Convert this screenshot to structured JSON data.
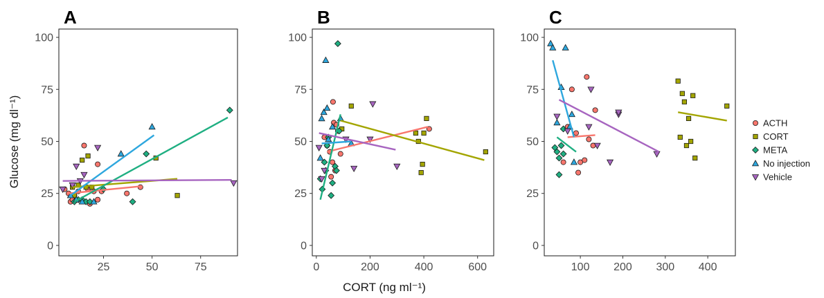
{
  "figure": {
    "ylabel": "Glucose (mg dl⁻¹)",
    "xlabel": "CORT (ng ml⁻¹)"
  },
  "legend": {
    "position": "right",
    "items": [
      {
        "name": "ACTH",
        "color": "#F8766D",
        "shape": "circle"
      },
      {
        "name": "CORT",
        "color": "#A3A500",
        "shape": "square"
      },
      {
        "name": "META",
        "color": "#1FAF82",
        "shape": "diamond"
      },
      {
        "name": "No injection",
        "color": "#2EA7DE",
        "shape": "triangle-up"
      },
      {
        "name": "Vehicle",
        "color": "#A765C0",
        "shape": "triangle-down"
      }
    ]
  },
  "chart_data": [
    {
      "type": "scatter",
      "title": "A",
      "xlim": [
        2,
        94
      ],
      "ylim": [
        -5,
        104
      ],
      "xticks": [
        25,
        50,
        75
      ],
      "yticks": [
        0,
        25,
        50,
        75,
        100
      ],
      "grid": false,
      "series": [
        {
          "name": "ACTH",
          "points": [
            [
              5,
              27
            ],
            [
              7,
              25
            ],
            [
              8,
              21
            ],
            [
              9,
              22
            ],
            [
              10,
              24
            ],
            [
              12,
              26
            ],
            [
              15,
              48
            ],
            [
              17,
              27
            ],
            [
              18,
              20
            ],
            [
              20,
              26
            ],
            [
              22,
              39
            ],
            [
              22,
              22
            ],
            [
              24,
              26
            ],
            [
              37,
              25
            ],
            [
              44,
              28
            ]
          ],
          "fit": [
            [
              7,
              25
            ],
            [
              45,
              28.5
            ]
          ]
        },
        {
          "name": "CORT",
          "points": [
            [
              9,
              28
            ],
            [
              10,
              24
            ],
            [
              12,
              29
            ],
            [
              14,
              41
            ],
            [
              16,
              28
            ],
            [
              17,
              43
            ],
            [
              19,
              28
            ],
            [
              52,
              42
            ],
            [
              63,
              24
            ]
          ],
          "fit": [
            [
              9,
              28
            ],
            [
              63,
              32
            ]
          ]
        },
        {
          "name": "META",
          "points": [
            [
              10,
              21
            ],
            [
              12,
              22
            ],
            [
              14,
              22
            ],
            [
              16,
              21
            ],
            [
              18,
              21
            ],
            [
              25,
              27
            ],
            [
              40,
              21
            ],
            [
              47,
              44
            ],
            [
              90,
              65
            ]
          ],
          "fit": [
            [
              10,
              21
            ],
            [
              89,
              61.5
            ]
          ]
        },
        {
          "name": "No injection",
          "points": [
            [
              8,
              24
            ],
            [
              11,
              22
            ],
            [
              14,
              21
            ],
            [
              20,
              21
            ],
            [
              34,
              44
            ],
            [
              50,
              57
            ]
          ],
          "fit": [
            [
              8,
              24
            ],
            [
              51,
              53
            ]
          ]
        },
        {
          "name": "Vehicle",
          "points": [
            [
              4,
              27
            ],
            [
              9,
              29
            ],
            [
              11,
              38
            ],
            [
              13,
              31
            ],
            [
              15,
              34
            ],
            [
              22,
              47
            ],
            [
              92,
              30
            ]
          ],
          "fit": [
            [
              4,
              31
            ],
            [
              91,
              31.5
            ]
          ]
        }
      ]
    },
    {
      "type": "scatter",
      "title": "B",
      "xlim": [
        -15,
        660
      ],
      "ylim": [
        -5,
        104
      ],
      "xticks": [
        0,
        200,
        400,
        600
      ],
      "yticks": [
        0,
        25,
        50,
        75,
        100
      ],
      "grid": false,
      "series": [
        {
          "name": "ACTH",
          "points": [
            [
              30,
              52
            ],
            [
              40,
              48
            ],
            [
              50,
              45
            ],
            [
              55,
              33
            ],
            [
              60,
              40
            ],
            [
              62,
              69
            ],
            [
              65,
              59
            ],
            [
              70,
              36
            ],
            [
              75,
              58
            ],
            [
              80,
              55
            ],
            [
              90,
              44
            ],
            [
              420,
              56
            ]
          ],
          "fit": [
            [
              40,
              45
            ],
            [
              415,
              57
            ]
          ]
        },
        {
          "name": "CORT",
          "points": [
            [
              95,
              56
            ],
            [
              130,
              67
            ],
            [
              370,
              54
            ],
            [
              380,
              50
            ],
            [
              390,
              35
            ],
            [
              395,
              39
            ],
            [
              400,
              54
            ],
            [
              410,
              61
            ],
            [
              630,
              45
            ]
          ],
          "fit": [
            [
              90,
              60
            ],
            [
              625,
              41
            ]
          ]
        },
        {
          "name": "META",
          "points": [
            [
              15,
              32
            ],
            [
              22,
              27
            ],
            [
              30,
              40
            ],
            [
              35,
              36
            ],
            [
              40,
              48
            ],
            [
              45,
              52
            ],
            [
              55,
              24
            ],
            [
              60,
              30
            ],
            [
              70,
              38
            ],
            [
              75,
              36
            ],
            [
              80,
              97
            ],
            [
              85,
              55
            ]
          ],
          "fit": [
            [
              15,
              22
            ],
            [
              90,
              63
            ]
          ]
        },
        {
          "name": "No injection",
          "points": [
            [
              15,
              42
            ],
            [
              20,
              61
            ],
            [
              28,
              64
            ],
            [
              35,
              89
            ],
            [
              40,
              66
            ],
            [
              45,
              51
            ],
            [
              60,
              57
            ],
            [
              90,
              61
            ],
            [
              130,
              49
            ]
          ],
          "fit": [
            [
              20,
              49
            ],
            [
              130,
              50
            ]
          ]
        },
        {
          "name": "Vehicle",
          "points": [
            [
              10,
              47
            ],
            [
              20,
              32
            ],
            [
              30,
              36
            ],
            [
              110,
              51
            ],
            [
              140,
              37
            ],
            [
              200,
              51
            ],
            [
              210,
              68
            ],
            [
              300,
              38
            ]
          ],
          "fit": [
            [
              10,
              54
            ],
            [
              295,
              46
            ]
          ]
        }
      ]
    },
    {
      "type": "scatter",
      "title": "C",
      "xlim": [
        15,
        465
      ],
      "ylim": [
        -5,
        104
      ],
      "xticks": [
        100,
        200,
        300,
        400
      ],
      "yticks": [
        0,
        25,
        50,
        75,
        100
      ],
      "grid": false,
      "series": [
        {
          "name": "ACTH",
          "points": [
            [
              60,
              40
            ],
            [
              70,
              57
            ],
            [
              80,
              75
            ],
            [
              90,
              54
            ],
            [
              95,
              35
            ],
            [
              100,
              40
            ],
            [
              110,
              41
            ],
            [
              115,
              81
            ],
            [
              120,
              51
            ],
            [
              130,
              48
            ],
            [
              135,
              65
            ]
          ],
          "fit": [
            [
              70,
              52
            ],
            [
              135,
              53
            ]
          ]
        },
        {
          "name": "CORT",
          "points": [
            [
              330,
              79
            ],
            [
              335,
              52
            ],
            [
              340,
              73
            ],
            [
              345,
              69
            ],
            [
              350,
              48
            ],
            [
              355,
              61
            ],
            [
              360,
              50
            ],
            [
              365,
              72
            ],
            [
              370,
              42
            ],
            [
              445,
              67
            ]
          ],
          "fit": [
            [
              330,
              64
            ],
            [
              445,
              60
            ]
          ]
        },
        {
          "name": "META",
          "points": [
            [
              40,
              47
            ],
            [
              45,
              45
            ],
            [
              50,
              34
            ],
            [
              50,
              42
            ],
            [
              55,
              48
            ],
            [
              60,
              44
            ],
            [
              60,
              56
            ]
          ],
          "fit": [
            [
              45,
              52
            ],
            [
              90,
              45
            ]
          ]
        },
        {
          "name": "No injection",
          "points": [
            [
              30,
              97
            ],
            [
              35,
              95
            ],
            [
              45,
              59
            ],
            [
              55,
              76
            ],
            [
              65,
              95
            ],
            [
              75,
              57
            ],
            [
              80,
              63
            ],
            [
              85,
              40
            ]
          ],
          "fit": [
            [
              35,
              89
            ],
            [
              85,
              52
            ]
          ]
        },
        {
          "name": "Vehicle",
          "points": [
            [
              45,
              62
            ],
            [
              70,
              55
            ],
            [
              120,
              57
            ],
            [
              125,
              75
            ],
            [
              140,
              48
            ],
            [
              170,
              40
            ],
            [
              190,
              63
            ],
            [
              190,
              64
            ],
            [
              280,
              44
            ]
          ],
          "fit": [
            [
              50,
              70
            ],
            [
              285,
              45
            ]
          ]
        }
      ]
    }
  ]
}
